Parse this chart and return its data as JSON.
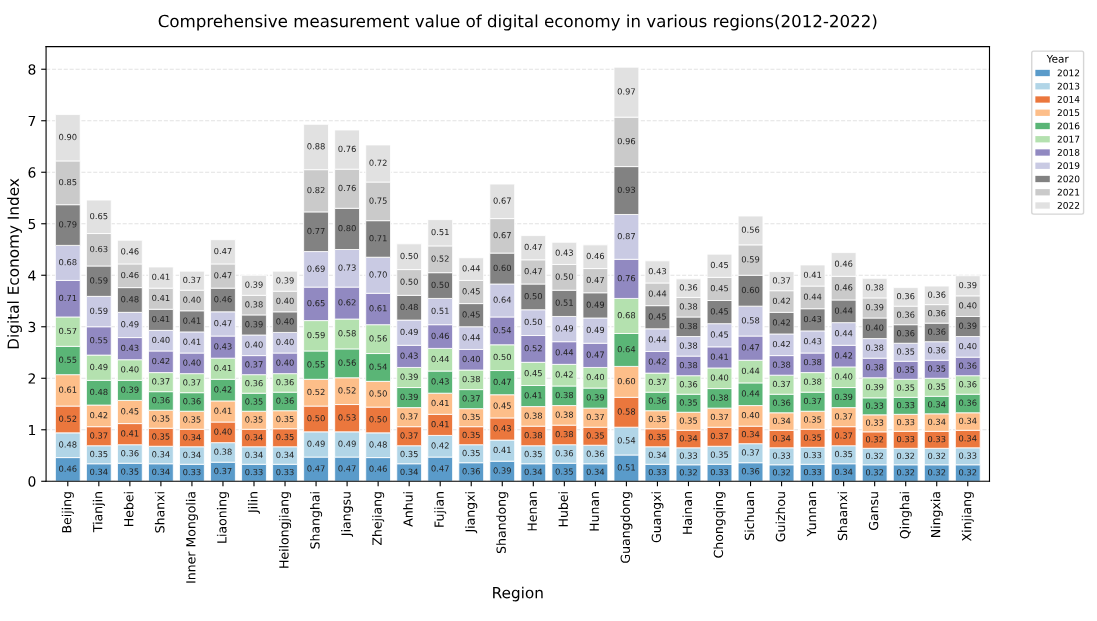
{
  "chart_data": {
    "type": "bar",
    "stacked": true,
    "title": "Comprehensive measurement value of digital economy in various regions(2012-2022)",
    "xlabel": "Region",
    "ylabel": "Digital Economy Index",
    "legend_title": "Year",
    "legend": "right",
    "grid": "y",
    "ylim": [
      0,
      8.44
    ],
    "yticks": [
      0,
      1,
      2,
      3,
      4,
      5,
      6,
      7,
      8
    ],
    "categories": [
      "Beijing",
      "Tianjin",
      "Hebei",
      "Shanxi",
      "Inner Mongolia",
      "Liaoning",
      "Jilin",
      "Heilongjiang",
      "Shanghai",
      "Jiangsu",
      "Zhejiang",
      "Anhui",
      "Fujian",
      "Jiangxi",
      "Shandong",
      "Henan",
      "Hubei",
      "Hunan",
      "Guangdong",
      "Guangxi",
      "Hainan",
      "Chongqing",
      "Sichuan",
      "Guizhou",
      "Yunnan",
      "Shaanxi",
      "Gansu",
      "Qinghai",
      "Ningxia",
      "Xinjiang"
    ],
    "series": [
      {
        "name": "2012",
        "color": "#5a9bca",
        "values": [
          0.46,
          0.34,
          0.35,
          0.34,
          0.33,
          0.37,
          0.33,
          0.33,
          0.47,
          0.47,
          0.46,
          0.34,
          0.47,
          0.36,
          0.39,
          0.34,
          0.35,
          0.34,
          0.51,
          0.33,
          0.32,
          0.33,
          0.36,
          0.32,
          0.33,
          0.34,
          0.32,
          0.32,
          0.32,
          0.32
        ],
        "value_labels": [
          "0.46",
          "0.34",
          "0.35",
          "0.34",
          "0.33",
          "0.37",
          "0.33",
          "0.33",
          "0.47",
          "0.47",
          "0.46",
          "0.34",
          "0.47",
          "0.36",
          "0.39",
          "0.34",
          "0.35",
          "0.34",
          "0.51",
          "0.33",
          "0.32",
          "0.33",
          "0.36",
          "0.32",
          "0.33",
          "0.34",
          "0.32",
          "0.32",
          "0.32",
          "0.32"
        ]
      },
      {
        "name": "2013",
        "color": "#b1d5e7",
        "values": [
          0.48,
          0.35,
          0.36,
          0.34,
          0.34,
          0.38,
          0.34,
          0.34,
          0.49,
          0.49,
          0.48,
          0.35,
          0.42,
          0.35,
          0.41,
          0.35,
          0.36,
          0.36,
          0.54,
          0.34,
          0.33,
          0.35,
          0.37,
          0.33,
          0.33,
          0.35,
          0.32,
          0.32,
          0.32,
          0.33
        ],
        "value_labels": [
          "0.48",
          "0.35",
          "0.36",
          "0.34",
          "0.34",
          "0.38",
          "0.34",
          "0.34",
          "0.49",
          "0.49",
          "0.48",
          "0.35",
          "0.42",
          "0.35",
          "0.41",
          "0.35",
          "0.36",
          "0.36",
          "0.54",
          "0.34",
          "0.33",
          "0.35",
          "0.37",
          "0.33",
          "0.33",
          "0.35",
          "0.32",
          "0.32",
          "0.32",
          "0.33"
        ]
      },
      {
        "name": "2014",
        "color": "#eb773d",
        "values": [
          0.52,
          0.37,
          0.41,
          0.35,
          0.34,
          0.4,
          0.34,
          0.35,
          0.5,
          0.53,
          0.5,
          0.37,
          0.41,
          0.35,
          0.43,
          0.38,
          0.38,
          0.35,
          0.58,
          0.35,
          0.34,
          0.37,
          0.34,
          0.34,
          0.35,
          0.37,
          0.32,
          0.33,
          0.33,
          0.34
        ],
        "value_labels": [
          "0.52",
          "0.37",
          "0.41",
          "0.35",
          "0.34",
          "0.40",
          "0.34",
          "0.35",
          "0.50",
          "0.53",
          "0.50",
          "0.37",
          "0.41",
          "0.35",
          "0.43",
          "0.38",
          "0.38",
          "0.35",
          "0.58",
          "0.35",
          "0.34",
          "0.37",
          "0.34",
          "0.34",
          "0.35",
          "0.37",
          "0.32",
          "0.33",
          "0.33",
          "0.34"
        ]
      },
      {
        "name": "2015",
        "color": "#fdbe89",
        "values": [
          0.61,
          0.42,
          0.45,
          0.35,
          0.35,
          0.41,
          0.35,
          0.35,
          0.52,
          0.52,
          0.5,
          0.37,
          0.41,
          0.35,
          0.45,
          0.38,
          0.38,
          0.37,
          0.6,
          0.35,
          0.35,
          0.37,
          0.4,
          0.34,
          0.35,
          0.37,
          0.33,
          0.33,
          0.34,
          0.34
        ],
        "value_labels": [
          "0.61",
          "0.42",
          "0.45",
          "0.35",
          "0.35",
          "0.41",
          "0.35",
          "0.35",
          "0.52",
          "0.52",
          "0.50",
          "0.37",
          "0.41",
          "0.35",
          "0.45",
          "0.38",
          "0.38",
          "0.37",
          "0.60",
          "0.35",
          "0.35",
          "0.37",
          "0.40",
          "0.34",
          "0.35",
          "0.37",
          "0.33",
          "0.33",
          "0.34",
          "0.34"
        ]
      },
      {
        "name": "2016",
        "color": "#5ab576",
        "values": [
          0.55,
          0.48,
          0.39,
          0.36,
          0.36,
          0.42,
          0.35,
          0.36,
          0.55,
          0.56,
          0.54,
          0.39,
          0.43,
          0.37,
          0.47,
          0.41,
          0.38,
          0.39,
          0.64,
          0.36,
          0.35,
          0.38,
          0.44,
          0.36,
          0.37,
          0.39,
          0.33,
          0.33,
          0.34,
          0.36
        ],
        "value_labels": [
          "0.55",
          "0.48",
          "0.39",
          "0.36",
          "0.36",
          "0.42",
          "0.35",
          "0.36",
          "0.55",
          "0.56",
          "0.54",
          "0.39",
          "0.43",
          "0.37",
          "0.47",
          "0.41",
          "0.38",
          "0.39",
          "0.64",
          "0.36",
          "0.35",
          "0.38",
          "0.44",
          "0.36",
          "0.37",
          "0.39",
          "0.33",
          "0.33",
          "0.34",
          "0.36"
        ]
      },
      {
        "name": "2017",
        "color": "#b4e1af",
        "values": [
          0.57,
          0.49,
          0.4,
          0.37,
          0.37,
          0.41,
          0.36,
          0.36,
          0.59,
          0.58,
          0.56,
          0.39,
          0.44,
          0.38,
          0.5,
          0.45,
          0.42,
          0.4,
          0.68,
          0.37,
          0.36,
          0.4,
          0.44,
          0.37,
          0.38,
          0.4,
          0.39,
          0.35,
          0.35,
          0.36
        ],
        "value_labels": [
          "0.57",
          "0.49",
          "0.40",
          "0.37",
          "0.37",
          "0.41",
          "0.36",
          "0.36",
          "0.59",
          "0.58",
          "0.56",
          "0.39",
          "0.44",
          "0.38",
          "0.50",
          "0.45",
          "0.42",
          "0.40",
          "0.68",
          "0.37",
          "0.36",
          "0.40",
          "0.44",
          "0.37",
          "0.38",
          "0.40",
          "0.39",
          "0.35",
          "0.35",
          "0.36"
        ]
      },
      {
        "name": "2018",
        "color": "#9189c1",
        "values": [
          0.71,
          0.55,
          0.43,
          0.42,
          0.4,
          0.43,
          0.37,
          0.4,
          0.65,
          0.62,
          0.61,
          0.43,
          0.46,
          0.4,
          0.54,
          0.52,
          0.44,
          0.47,
          0.76,
          0.42,
          0.38,
          0.41,
          0.47,
          0.38,
          0.38,
          0.42,
          0.38,
          0.35,
          0.35,
          0.36
        ],
        "value_labels": [
          "0.71",
          "0.55",
          "0.43",
          "0.42",
          "0.40",
          "0.43",
          "0.37",
          "0.40",
          "0.65",
          "0.62",
          "0.61",
          "0.43",
          "0.46",
          "0.40",
          "0.54",
          "0.52",
          "0.44",
          "0.47",
          "0.76",
          "0.42",
          "0.38",
          "0.41",
          "0.47",
          "0.38",
          "0.38",
          "0.42",
          "0.38",
          "0.35",
          "0.35",
          "0.36"
        ]
      },
      {
        "name": "2019",
        "color": "#c9cae3",
        "values": [
          0.68,
          0.59,
          0.49,
          0.4,
          0.41,
          0.47,
          0.4,
          0.4,
          0.69,
          0.73,
          0.7,
          0.49,
          0.51,
          0.44,
          0.64,
          0.5,
          0.49,
          0.49,
          0.87,
          0.44,
          0.38,
          0.45,
          0.58,
          0.42,
          0.43,
          0.44,
          0.38,
          0.35,
          0.36,
          0.4
        ],
        "value_labels": [
          "0.68",
          "0.59",
          "0.49",
          "0.40",
          "0.41",
          "0.47",
          "0.40",
          "0.40",
          "0.69",
          "0.73",
          "0.70",
          "0.49",
          "0.51",
          "0.44",
          "0.64",
          "0.50",
          "0.49",
          "0.49",
          "0.87",
          "0.44",
          "0.38",
          "0.45",
          "0.58",
          "0.42",
          "0.43",
          "0.44",
          "0.38",
          "0.35",
          "0.36",
          "0.40"
        ]
      },
      {
        "name": "2020",
        "color": "#828282",
        "values": [
          0.79,
          0.59,
          0.48,
          0.41,
          0.41,
          0.46,
          0.39,
          0.4,
          0.77,
          0.8,
          0.71,
          0.48,
          0.5,
          0.45,
          0.6,
          0.5,
          0.51,
          0.49,
          0.93,
          0.45,
          0.38,
          0.45,
          0.6,
          0.42,
          0.43,
          0.44,
          0.4,
          0.36,
          0.36,
          0.39
        ],
        "value_labels": [
          "0.79",
          "0.59",
          "0.48",
          "0.41",
          "0.41",
          "0.46",
          "0.39",
          "0.40",
          "0.77",
          "0.80",
          "0.71",
          "0.48",
          "0.50",
          "0.45",
          "0.60",
          "0.50",
          "0.51",
          "0.49",
          "0.93",
          "0.45",
          "0.38",
          "0.45",
          "0.60",
          "0.42",
          "0.43",
          "0.44",
          "0.40",
          "0.36",
          "0.36",
          "0.39"
        ]
      },
      {
        "name": "2021",
        "color": "#cacaca",
        "values": [
          0.85,
          0.63,
          0.46,
          0.41,
          0.4,
          0.47,
          0.38,
          0.4,
          0.82,
          0.76,
          0.75,
          0.5,
          0.52,
          0.45,
          0.67,
          0.47,
          0.5,
          0.47,
          0.96,
          0.44,
          0.38,
          0.45,
          0.59,
          0.42,
          0.44,
          0.46,
          0.39,
          0.36,
          0.36,
          0.4
        ],
        "value_labels": [
          "0.85",
          "0.63",
          "0.46",
          "0.41",
          "0.40",
          "0.47",
          "0.38",
          "0.40",
          "0.82",
          "0.76",
          "0.75",
          "0.50",
          "0.52",
          "0.45",
          "0.67",
          "0.47",
          "0.50",
          "0.47",
          "0.96",
          "0.44",
          "0.38",
          "0.45",
          "0.59",
          "0.42",
          "0.44",
          "0.46",
          "0.39",
          "0.36",
          "0.36",
          "0.40"
        ]
      },
      {
        "name": "2022",
        "color": "#e1e1e1",
        "values": [
          0.9,
          0.65,
          0.46,
          0.41,
          0.37,
          0.47,
          0.39,
          0.39,
          0.88,
          0.76,
          0.72,
          0.5,
          0.51,
          0.44,
          0.67,
          0.47,
          0.43,
          0.46,
          0.97,
          0.43,
          0.36,
          0.45,
          0.56,
          0.37,
          0.41,
          0.46,
          0.38,
          0.36,
          0.36,
          0.39
        ],
        "value_labels": [
          "0.90",
          "0.65",
          "0.46",
          "0.41",
          "0.37",
          "0.47",
          "0.39",
          "0.39",
          "0.88",
          "0.76",
          "0.72",
          "0.50",
          "0.51",
          "0.44",
          "0.67",
          "0.47",
          "0.43",
          "0.46",
          "0.97",
          "0.43",
          "0.36",
          "0.45",
          "0.56",
          "0.37",
          "0.41",
          "0.46",
          "0.38",
          "0.36",
          "0.36",
          "0.39"
        ]
      }
    ]
  }
}
